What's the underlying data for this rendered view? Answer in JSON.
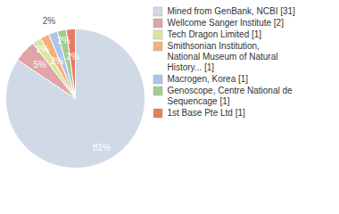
{
  "chart_data": {
    "type": "pie",
    "categories": [
      "Mined from GenBank, NCBI [31]",
      "Wellcome Sanger Institute [2]",
      "Tech Dragon Limited [1]",
      "Smithsonian Institution, National Museum of Natural History... [1]",
      "Macrogen, Korea [1]",
      "Genoscope, Centre National de Sequencage [1]",
      "1st Base Pte Ltd [1]"
    ],
    "values": [
      81,
      5,
      2,
      2,
      2,
      2,
      2
    ],
    "value_labels": [
      "81%",
      "5%",
      "2%",
      "2%",
      "2%",
      "2%",
      "2%"
    ],
    "colors": [
      "#cfdae6",
      "#e0a4a4",
      "#dde4a0",
      "#f4b07c",
      "#adc4ec",
      "#a4cc8c",
      "#e87a62"
    ],
    "data_labels": true,
    "legend": "right"
  }
}
